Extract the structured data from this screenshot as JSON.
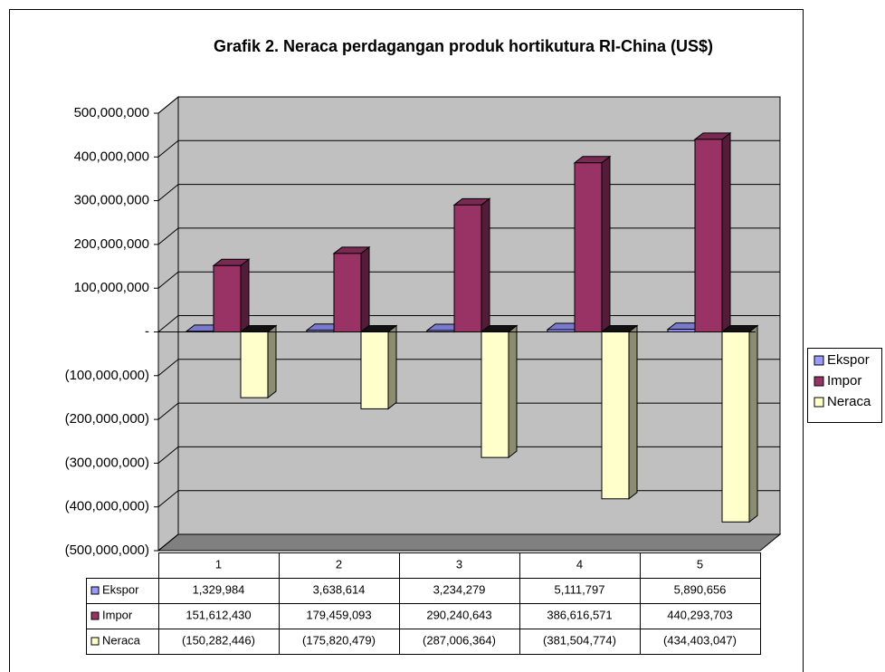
{
  "chart_data": {
    "type": "bar3d",
    "title": "Grafik 2. Neraca perdagangan produk hortikutura RI-China (US$)",
    "categories": [
      "1",
      "2",
      "3",
      "4",
      "5"
    ],
    "series": [
      {
        "name": "Ekspor",
        "color": "#9999ff",
        "values": [
          1329984,
          3638614,
          3234279,
          5111797,
          5890656
        ],
        "value_labels": [
          "1,329,984",
          "3,638,614",
          "3,234,279",
          "5,111,797",
          "5,890,656"
        ]
      },
      {
        "name": "Impor",
        "color": "#993366",
        "values": [
          151612430,
          179459093,
          290240643,
          386616571,
          440293703
        ],
        "value_labels": [
          "151,612,430",
          "179,459,093",
          "290,240,643",
          "386,616,571",
          "440,293,703"
        ]
      },
      {
        "name": "Neraca",
        "color": "#ffffcc",
        "values": [
          -150282446,
          -175820479,
          -287006364,
          -381504774,
          -434403047
        ],
        "value_labels": [
          "(150,282,446)",
          "(175,820,479)",
          "(287,006,364)",
          "(381,504,774)",
          "(434,403,047)"
        ]
      }
    ],
    "ylim": [
      -500000000,
      500000000
    ],
    "yticks": [
      {
        "value": -500000000,
        "label": "(500,000,000)"
      },
      {
        "value": -400000000,
        "label": "(400,000,000)"
      },
      {
        "value": -300000000,
        "label": "(300,000,000)"
      },
      {
        "value": -200000000,
        "label": "(200,000,000)"
      },
      {
        "value": -100000000,
        "label": "(100,000,000)"
      },
      {
        "value": 0,
        "label": "-"
      },
      {
        "value": 100000000,
        "label": "100,000,000"
      },
      {
        "value": 200000000,
        "label": "200,000,000"
      },
      {
        "value": 300000000,
        "label": "300,000,000"
      },
      {
        "value": 400000000,
        "label": "400,000,000"
      },
      {
        "value": 500000000,
        "label": "500,000,000"
      }
    ],
    "grid": true,
    "legend": "right",
    "data_table": true
  }
}
